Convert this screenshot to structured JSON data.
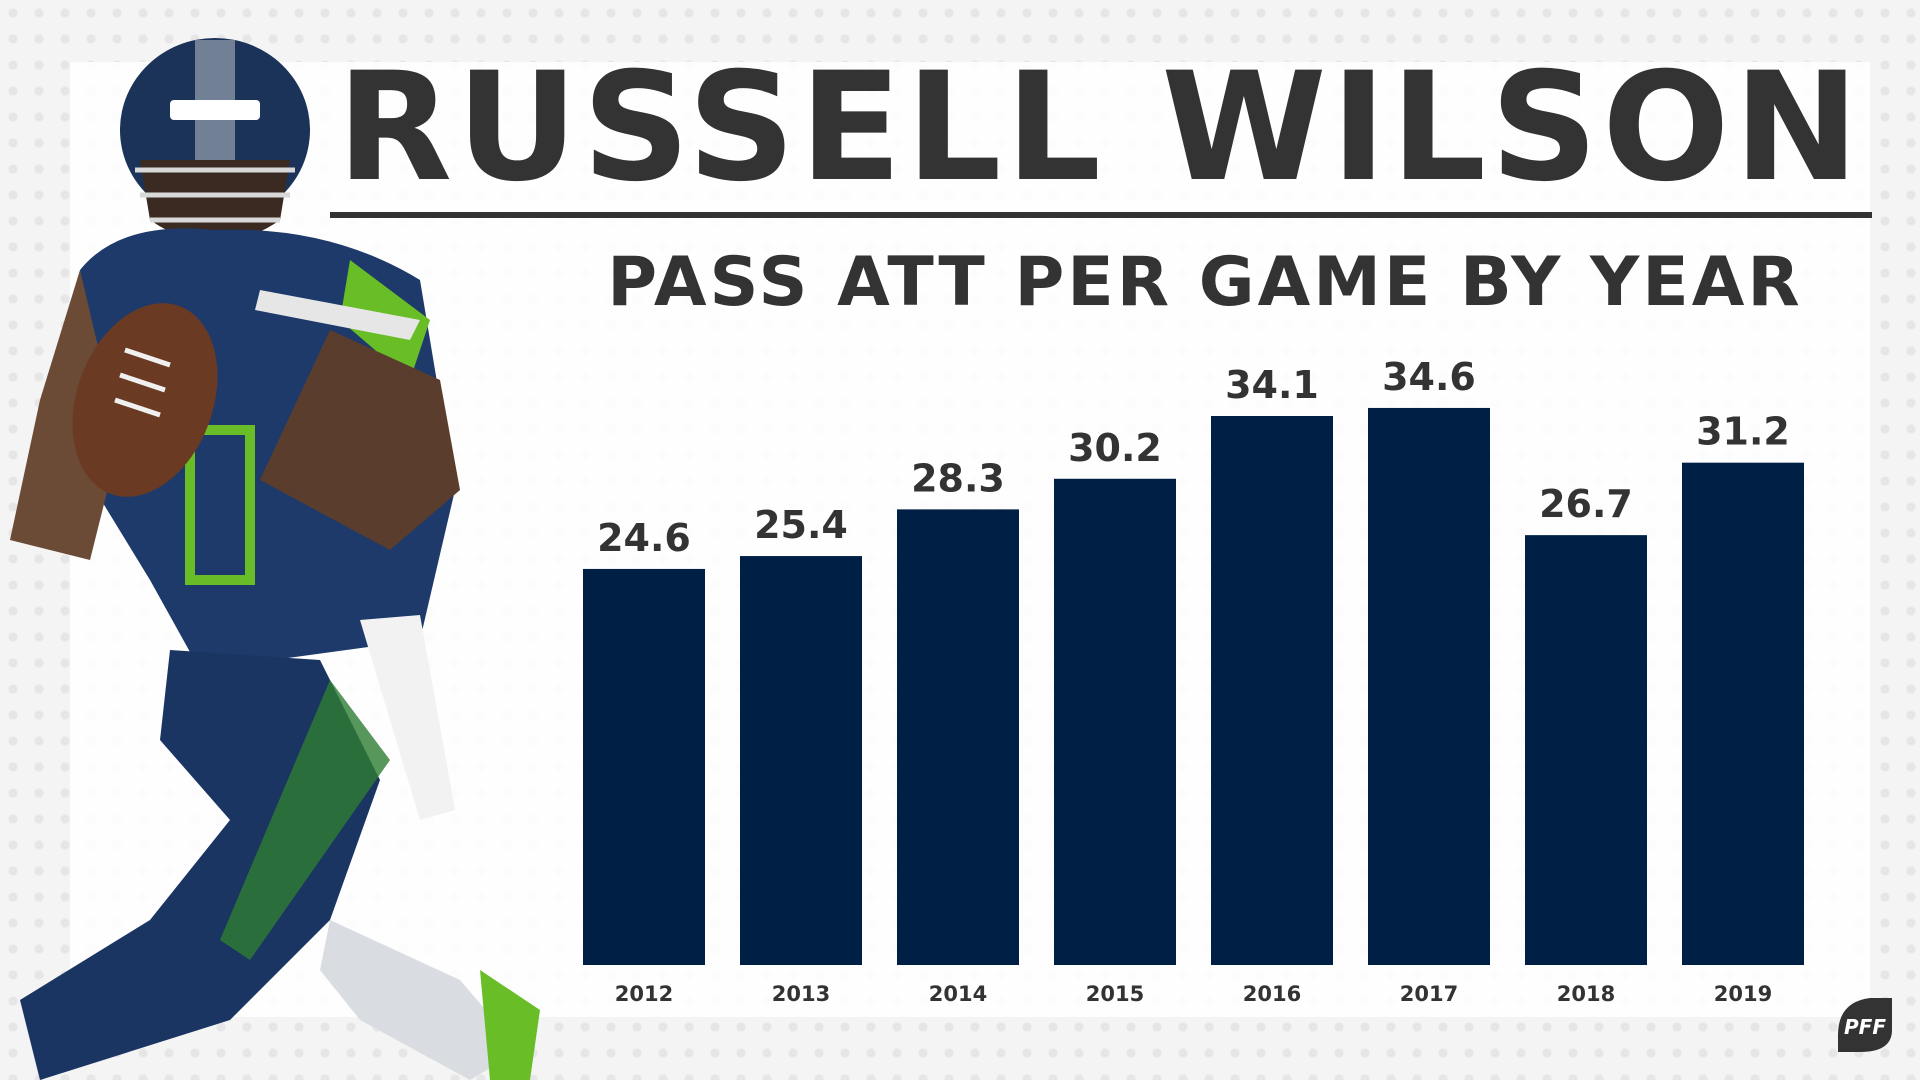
{
  "title": "RUSSELL WILSON",
  "subtitle": "PASS ATT PER GAME BY YEAR",
  "logo": {
    "name": "PFF",
    "icon": "pff-logo"
  },
  "colors": {
    "bar": "#001f45",
    "text": "#333333",
    "accent": "#69be28"
  },
  "chart_data": {
    "type": "bar",
    "title": "RUSSELL WILSON",
    "subtitle": "PASS ATT PER GAME BY YEAR",
    "categories": [
      "2012",
      "2013",
      "2014",
      "2015",
      "2016",
      "2017",
      "2018",
      "2019"
    ],
    "values": [
      24.6,
      25.4,
      28.3,
      30.2,
      34.1,
      34.6,
      26.7,
      31.2
    ],
    "value_labels": [
      "24.6",
      "25.4",
      "28.3",
      "30.2",
      "34.1",
      "34.6",
      "26.7",
      "31.2"
    ],
    "xlabel": "",
    "ylabel": "",
    "ylim": [
      0,
      40
    ],
    "grid": false,
    "legend": "none"
  }
}
